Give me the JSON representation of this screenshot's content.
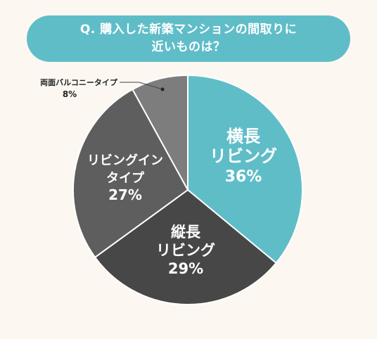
{
  "title": {
    "line1": "Q. 購入した新築マンションの間取りに",
    "line2": "近いものは？"
  },
  "colors": {
    "background": "#fcf8f1",
    "title_bg": "#5fbdc8"
  },
  "chart_data": {
    "type": "pie",
    "start": "12 o'clock",
    "direction": "clockwise",
    "slices": [
      {
        "label_lines": [
          "横長",
          "リビング"
        ],
        "value": 36,
        "value_label": "36%",
        "color": "#5fbdc8"
      },
      {
        "label_lines": [
          "縦長",
          "リビング"
        ],
        "value": 29,
        "value_label": "29%",
        "color": "#474747"
      },
      {
        "label_lines": [
          "リビングイン",
          "タイプ"
        ],
        "value": 27,
        "value_label": "27%",
        "color": "#5e5e5e"
      },
      {
        "label_lines": [
          "両面バルコニータイプ"
        ],
        "value": 8,
        "value_label": "8%",
        "color": "#7d7d7d",
        "label_outside": true
      }
    ]
  }
}
